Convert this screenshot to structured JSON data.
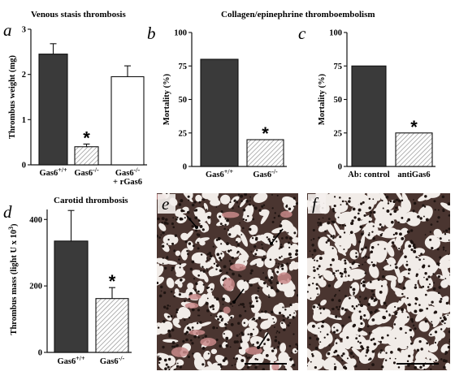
{
  "titles": {
    "venous": "Venous stasis thrombosis",
    "collagen": "Collagen/epinephrine thromboembolism",
    "carotid": "Carotid thrombosis"
  },
  "colors": {
    "dark": "#3a3a3a",
    "white": "#ffffff",
    "hatch": "#888888",
    "tissue": "#3b2a25",
    "pink": "#c98a8a"
  },
  "chart_data": [
    {
      "panel": "a",
      "type": "bar",
      "ylabel": "Thrombus weight (mg)",
      "ylim": [
        0,
        3
      ],
      "yticks": [
        0,
        1,
        2,
        3
      ],
      "categories": [
        {
          "lines": [
            {
              "t": "Gas6",
              "s": "+/+"
            }
          ]
        },
        {
          "lines": [
            {
              "t": "Gas6",
              "s": "-/-"
            }
          ]
        },
        {
          "lines": [
            {
              "t": "Gas6",
              "s": "-/-"
            },
            {
              "t": "+ rGas6",
              "s": ""
            }
          ]
        }
      ],
      "values": [
        2.45,
        0.4,
        1.95
      ],
      "errors": [
        0.23,
        0.06,
        0.24
      ],
      "fills": [
        "dark",
        "hatch",
        "white"
      ],
      "significance": [
        false,
        true,
        false
      ]
    },
    {
      "panel": "b",
      "type": "bar",
      "ylabel": "Mortality (%)",
      "ylim": [
        0,
        100
      ],
      "yticks": [
        0,
        25,
        50,
        75,
        100
      ],
      "categories": [
        {
          "lines": [
            {
              "t": "Gas6",
              "s": "+/+"
            }
          ]
        },
        {
          "lines": [
            {
              "t": "Gas6",
              "s": "-/-"
            }
          ]
        }
      ],
      "values": [
        80,
        20
      ],
      "errors": [
        0,
        0
      ],
      "fills": [
        "dark",
        "hatch"
      ],
      "significance": [
        false,
        true
      ]
    },
    {
      "panel": "c",
      "type": "bar",
      "ylabel": "Mortality (%)",
      "ylim": [
        0,
        100
      ],
      "yticks": [
        0,
        25,
        50,
        75,
        100
      ],
      "categories": [
        {
          "lines": [
            {
              "t": "Ab: control",
              "s": ""
            }
          ]
        },
        {
          "lines": [
            {
              "t": "antiGas6",
              "s": ""
            }
          ]
        }
      ],
      "values": [
        75,
        25
      ],
      "errors": [
        0,
        0
      ],
      "fills": [
        "dark",
        "hatch"
      ],
      "significance": [
        false,
        true
      ]
    },
    {
      "panel": "d",
      "type": "bar",
      "ylabel": "Thrombus mass (light U x 10",
      "ylabel_sup": "3",
      "ylabel_end": ")",
      "ylim": [
        0,
        430
      ],
      "yticks": [
        0,
        200,
        400
      ],
      "categories": [
        {
          "lines": [
            {
              "t": "Gas6",
              "s": "+/+"
            }
          ]
        },
        {
          "lines": [
            {
              "t": "Gas6",
              "s": "-/-"
            }
          ]
        }
      ],
      "values": [
        335,
        162
      ],
      "errors": [
        92,
        33
      ],
      "fills": [
        "dark",
        "hatch"
      ],
      "significance": [
        false,
        true
      ]
    }
  ],
  "micrographs": [
    {
      "panel": "e",
      "dense": true
    },
    {
      "panel": "f",
      "dense": false
    }
  ]
}
